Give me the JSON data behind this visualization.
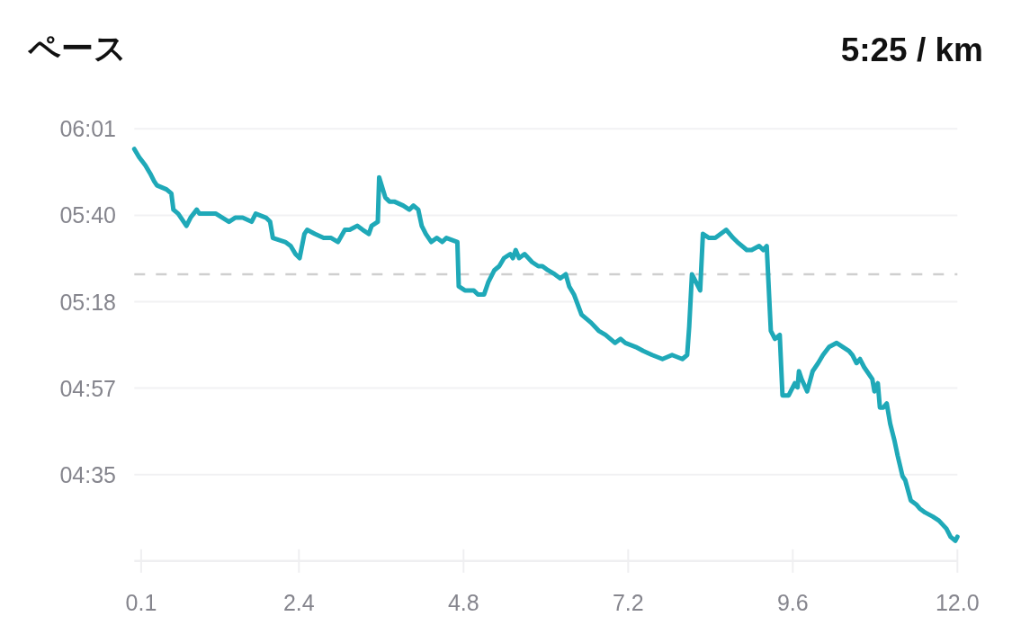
{
  "chart_data": {
    "type": "line",
    "title": "ペース",
    "subtitle": "5:25 / km",
    "x": [
      0,
      0.07,
      0.16,
      0.23,
      0.29,
      0.33,
      0.47,
      0.54,
      0.57,
      0.64,
      0.76,
      0.82,
      0.91,
      0.95,
      1.04,
      1.19,
      1.38,
      1.47,
      1.58,
      1.71,
      1.77,
      1.92,
      1.98,
      2.02,
      2.2,
      2.28,
      2.35,
      2.41,
      2.48,
      2.52,
      2.63,
      2.76,
      2.87,
      2.97,
      3.07,
      3.14,
      3.25,
      3.33,
      3.42,
      3.46,
      3.55,
      3.57,
      3.66,
      3.72,
      3.79,
      3.92,
      4.01,
      4.07,
      4.14,
      4.19,
      4.25,
      4.33,
      4.41,
      4.49,
      4.55,
      4.71,
      4.73,
      4.82,
      4.95,
      5.01,
      5.1,
      5.16,
      5.25,
      5.32,
      5.39,
      5.48,
      5.52,
      5.56,
      5.61,
      5.69,
      5.8,
      5.89,
      5.95,
      6.03,
      6.13,
      6.21,
      6.29,
      6.34,
      6.41,
      6.52,
      6.59,
      6.66,
      6.77,
      6.87,
      7.01,
      7.09,
      7.16,
      7.31,
      7.42,
      7.55,
      7.7,
      7.84,
      7.99,
      8.06,
      8.09,
      8.13,
      8.19,
      8.25,
      8.29,
      8.38,
      8.47,
      8.55,
      8.63,
      8.73,
      8.79,
      8.93,
      9.0,
      9.11,
      9.17,
      9.22,
      9.28,
      9.34,
      9.41,
      9.45,
      9.54,
      9.63,
      9.67,
      9.69,
      9.73,
      9.81,
      9.89,
      9.97,
      10.04,
      10.13,
      10.24,
      10.42,
      10.47,
      10.53,
      10.58,
      10.64,
      10.76,
      10.79,
      10.84,
      10.87,
      10.92,
      10.97,
      11.02,
      11.08,
      11.13,
      11.2,
      11.24,
      11.32,
      11.4,
      11.45,
      11.53,
      11.64,
      11.73,
      11.84,
      11.9,
      11.97,
      12.0
    ],
    "series": [
      {
        "color": "#1fa9b8",
        "values": [
          356,
          354,
          352,
          350,
          348,
          347,
          346,
          345,
          341,
          340,
          337,
          339,
          341,
          340,
          340,
          340,
          338,
          339,
          339,
          338,
          340,
          339,
          338,
          334,
          333,
          332,
          330,
          329,
          335,
          336,
          335,
          334,
          334,
          333,
          336,
          336,
          337,
          336,
          335,
          337,
          338,
          349,
          344,
          343,
          343,
          342,
          341,
          342,
          341,
          337,
          335,
          333,
          334,
          333,
          334,
          333,
          322,
          321,
          321,
          320,
          320,
          323,
          326,
          327,
          329,
          330,
          329,
          331,
          329,
          330,
          328,
          327,
          327,
          326,
          325,
          324,
          325,
          322,
          320,
          315,
          314,
          313,
          311,
          310,
          308,
          309,
          308,
          307,
          306,
          305,
          304,
          305,
          304,
          305,
          312,
          325,
          323,
          321,
          335,
          334,
          334,
          335,
          336,
          334,
          333,
          331,
          331,
          332,
          331,
          332,
          311,
          309,
          310,
          295,
          295,
          298,
          297,
          301,
          299,
          296,
          301,
          303,
          305,
          307,
          308,
          306,
          305,
          303,
          304,
          302,
          299,
          296,
          298,
          292,
          292,
          293,
          288,
          284,
          280,
          275,
          274,
          269,
          268,
          267,
          266,
          265,
          264,
          262,
          260,
          259,
          260
        ]
      }
    ],
    "xlim": [
      0,
      12.0
    ],
    "xticks": [
      0.1,
      2.4,
      4.8,
      7.2,
      9.6,
      {
        "value": 12.0,
        "label": "12.0"
      }
    ],
    "ylim": [
      254,
      361
    ],
    "yticks": [
      {
        "value": 361,
        "label": "06:01"
      },
      {
        "value": 339.6,
        "label": "05:40"
      },
      {
        "value": 318.2,
        "label": "05:18"
      },
      {
        "value": 296.8,
        "label": "04:57"
      },
      {
        "value": 275.4,
        "label": "04:35"
      }
    ],
    "grid": "y",
    "line_style": "solid",
    "ref_lines": [
      {
        "axis": "y",
        "value": 325,
        "color": "#cfcfcf",
        "line_style": "dashed"
      }
    ]
  }
}
